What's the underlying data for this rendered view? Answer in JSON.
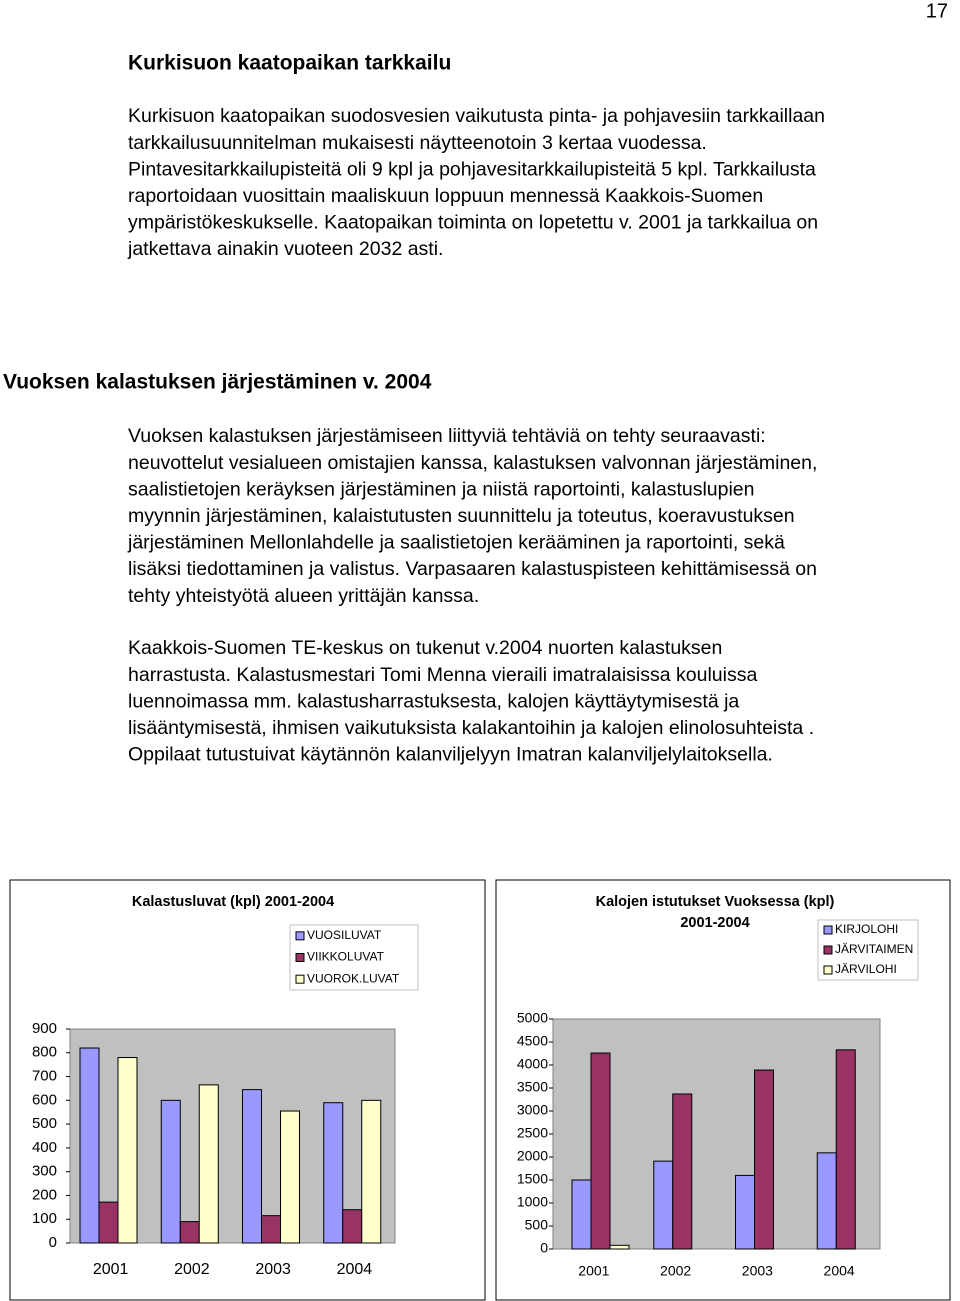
{
  "page_number": "17",
  "sections": [
    {
      "heading": "Kurkisuon kaatopaikan tarkkailu",
      "paragraphs": [
        [
          "Kurkisuon kaatopaikan suodosvesien vaikutusta pinta- ja pohjavesiin tarkkaillaan",
          "tarkkailusuunnitelman mukaisesti näytteenotoin 3 kertaa vuodessa.",
          "Pintavesitarkkailupisteitä oli 9 kpl ja pohjavesitarkkailupisteitä 5 kpl. Tarkkailusta",
          "raportoidaan vuosittain maaliskuun loppuun mennessä Kaakkois-Suomen",
          "ympäristökeskukselle. Kaatopaikan toiminta on lopetettu v. 2001 ja  tarkkailua on",
          "jatkettava ainakin vuoteen 2032 asti."
        ]
      ]
    },
    {
      "heading": "Vuoksen kalastuksen järjestäminen v. 2004",
      "paragraphs": [
        [
          "Vuoksen kalastuksen järjestämiseen liittyviä tehtäviä on tehty seuraavasti:",
          "neuvottelut vesialueen omistajien kanssa, kalastuksen valvonnan järjestäminen,",
          "saalistietojen keräyksen järjestäminen ja niistä raportointi, kalastuslupien",
          "myynnin järjestäminen, kalaistutusten suunnittelu ja toteutus, koeravustuksen",
          "järjestäminen Mellonlahdelle ja saalistietojen kerääminen ja raportointi, sekä",
          "lisäksi tiedottaminen ja valistus. Varpasaaren kalastuspisteen kehittämisessä on",
          "tehty yhteistyötä alueen yrittäjän kanssa."
        ],
        [
          "Kaakkois-Suomen TE-keskus on tukenut v.2004 nuorten kalastuksen",
          "harrastusta.  Kalastusmestari Tomi Menna vieraili imatralaisissa kouluissa",
          "luennoimassa mm. kalastusharrastuksesta, kalojen käyttäytymisestä ja",
          "lisääntymisestä, ihmisen vaikutuksista kalakantoihin ja kalojen elinolosuhteista .",
          "Oppilaat tutustuivat käytännön kalanviljelyyn Imatran kalanviljelylaitoksella."
        ]
      ]
    }
  ],
  "chart_data": [
    {
      "type": "bar",
      "title": [
        "Kalastusluvat (kpl) 2001-2004"
      ],
      "categories": [
        "2001",
        "2002",
        "2003",
        "2004"
      ],
      "series": [
        {
          "name": "VUOSILUVAT",
          "color": "#9999ff",
          "values": [
            820,
            600,
            645,
            590
          ]
        },
        {
          "name": "VIIKKOLUVAT",
          "color": "#993366",
          "values": [
            172,
            90,
            115,
            140
          ]
        },
        {
          "name": "VUOROK.LUVAT",
          "color": "#ffffcc",
          "values": [
            780,
            665,
            555,
            600
          ]
        }
      ],
      "ylim": [
        0,
        900
      ],
      "yticks": [
        0,
        100,
        200,
        300,
        400,
        500,
        600,
        700,
        800,
        900
      ],
      "grid": false
    },
    {
      "type": "bar",
      "title": [
        "Kalojen istutukset Vuoksessa (kpl)",
        "2001-2004"
      ],
      "categories": [
        "2001",
        "2002",
        "2003",
        "2004"
      ],
      "series": [
        {
          "name": "KIRJOLOHI",
          "color": "#9999ff",
          "values": [
            1500,
            1910,
            1600,
            2090
          ]
        },
        {
          "name": "JÄRVITAIMEN",
          "color": "#993366",
          "values": [
            4260,
            3370,
            3890,
            4330
          ]
        },
        {
          "name": "JÄRVILOHI",
          "color": "#ffffcc",
          "values": [
            80,
            0,
            0,
            0
          ]
        }
      ],
      "ylim": [
        0,
        5000
      ],
      "yticks": [
        0,
        500,
        1000,
        1500,
        2000,
        2500,
        3000,
        3500,
        4000,
        4500,
        5000
      ],
      "grid": false
    }
  ]
}
